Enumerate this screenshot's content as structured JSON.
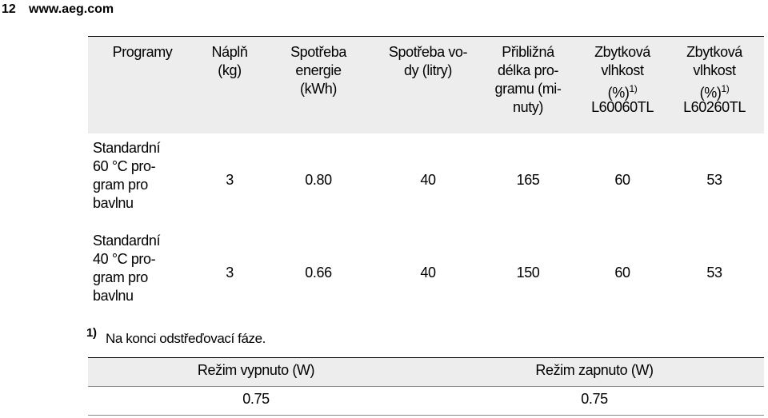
{
  "header": {
    "page_number": "12",
    "site": "www.aeg.com"
  },
  "table": {
    "columns": [
      {
        "lines": [
          "Programy"
        ]
      },
      {
        "lines": [
          "Náplň",
          "(kg)"
        ]
      },
      {
        "lines": [
          "Spotřeba",
          "energie",
          "(kWh)"
        ]
      },
      {
        "lines": [
          "Spotřeba vo-",
          "dy (litry)"
        ]
      },
      {
        "lines": [
          "Přibližná",
          "délka pro-",
          "gramu (mi-",
          "nuty)"
        ]
      },
      {
        "lines": [
          "Zbytková",
          "vlhkost",
          "(%)",
          "L60060TL"
        ],
        "note": "1)"
      },
      {
        "lines": [
          "Zbytková",
          "vlhkost",
          "(%)",
          "L60260TL"
        ],
        "note": "1)"
      }
    ],
    "rows": [
      {
        "label": [
          "Standardní",
          "60 °C pro-",
          "gram pro",
          "bavlnu"
        ],
        "cells": [
          "3",
          "0.80",
          "40",
          "165",
          "60",
          "53"
        ]
      },
      {
        "label": [
          "Standardní",
          "40 °C pro-",
          "gram pro",
          "bavlnu"
        ],
        "cells": [
          "3",
          "0.66",
          "40",
          "150",
          "60",
          "53"
        ]
      }
    ]
  },
  "footnote": {
    "mark": "1)",
    "text": "Na konci odstřeďovací fáze."
  },
  "power_table": {
    "columns": [
      "Režim vypnuto (W)",
      "Režim zapnuto (W)"
    ],
    "rows": [
      [
        "0.75",
        "0.75"
      ]
    ]
  }
}
